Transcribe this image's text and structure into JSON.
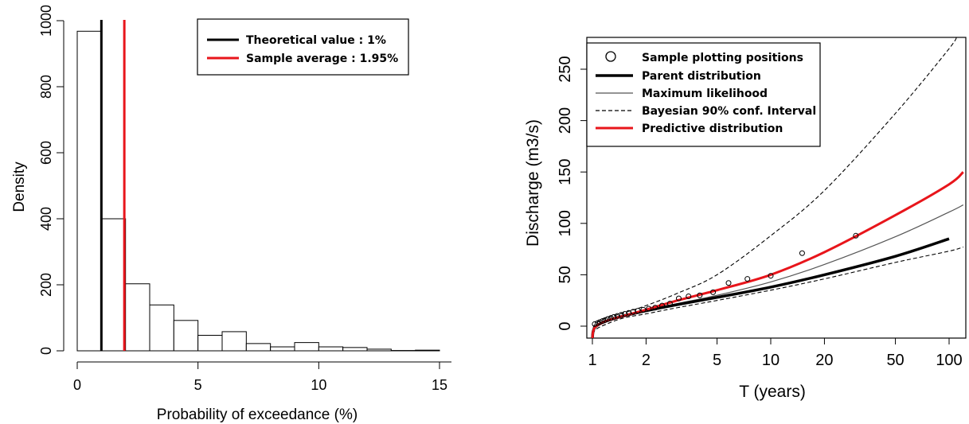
{
  "chart_data": [
    {
      "type": "bar",
      "subtype": "histogram",
      "title": "",
      "xlabel": "Probability of exceedance (%)",
      "ylabel": "Density",
      "xlim": [
        0,
        15
      ],
      "ylim": [
        0,
        1000
      ],
      "x_ticks": [
        0,
        5,
        10,
        15
      ],
      "y_ticks": [
        0,
        200,
        400,
        600,
        800,
        1000
      ],
      "bin_width": 1,
      "bins": [
        {
          "x0": 0,
          "x1": 1,
          "value": 968
        },
        {
          "x0": 1,
          "x1": 2,
          "value": 400
        },
        {
          "x0": 2,
          "x1": 3,
          "value": 203
        },
        {
          "x0": 3,
          "x1": 4,
          "value": 139
        },
        {
          "x0": 4,
          "x1": 5,
          "value": 92
        },
        {
          "x0": 5,
          "x1": 6,
          "value": 47
        },
        {
          "x0": 6,
          "x1": 7,
          "value": 58
        },
        {
          "x0": 7,
          "x1": 8,
          "value": 22
        },
        {
          "x0": 8,
          "x1": 9,
          "value": 12
        },
        {
          "x0": 9,
          "x1": 10,
          "value": 25
        },
        {
          "x0": 10,
          "x1": 11,
          "value": 12
        },
        {
          "x0": 11,
          "x1": 12,
          "value": 10
        },
        {
          "x0": 12,
          "x1": 13,
          "value": 5
        },
        {
          "x0": 13,
          "x1": 14,
          "value": 1
        },
        {
          "x0": 14,
          "x1": 15,
          "value": 2
        }
      ],
      "vlines": [
        {
          "name": "Theoretical value : 1%",
          "x": 1,
          "color": "#000000"
        },
        {
          "name": "Sample average : 1.95%",
          "x": 1.95,
          "color": "#e8151b"
        }
      ],
      "legend": {
        "position": "top-right",
        "entries": [
          "Theoretical value : 1%",
          "Sample average : 1.95%"
        ]
      }
    },
    {
      "type": "line",
      "title": "",
      "xlabel": "T (years)",
      "ylabel": "Discharge (m3/s)",
      "x_scale": "log",
      "xlim": [
        1,
        120
      ],
      "ylim": [
        -10,
        280
      ],
      "x_ticks": [
        1,
        2,
        5,
        10,
        20,
        50,
        100
      ],
      "y_ticks": [
        0,
        50,
        100,
        150,
        200,
        250
      ],
      "series": [
        {
          "name": "Sample plotting positions",
          "style": "points",
          "color": "#000000",
          "x": [
            1.03,
            1.07,
            1.1,
            1.14,
            1.18,
            1.22,
            1.27,
            1.32,
            1.38,
            1.45,
            1.52,
            1.6,
            1.69,
            1.8,
            1.93,
            2.07,
            2.25,
            2.46,
            2.72,
            3.05,
            3.46,
            4.0,
            4.75,
            5.8,
            7.4,
            10.0,
            15.0,
            30.0
          ],
          "y": [
            2,
            3,
            4,
            5,
            6,
            7,
            8,
            9,
            10,
            11,
            12,
            13,
            14,
            15,
            16,
            17,
            18,
            20,
            22,
            27,
            29,
            30,
            33,
            42,
            46,
            49,
            71,
            88
          ]
        },
        {
          "name": "Parent distribution",
          "style": "thick",
          "color": "#000000",
          "x": [
            1.001,
            1.01,
            1.05,
            1.2,
            1.5,
            2,
            3,
            5,
            10,
            20,
            50,
            100
          ],
          "y": [
            -12,
            -5,
            0,
            5,
            10,
            15,
            21,
            28,
            38,
            50,
            68,
            85
          ]
        },
        {
          "name": "Maximum likelihood",
          "style": "thin",
          "color": "#555555",
          "x": [
            1.001,
            1.01,
            1.05,
            1.2,
            1.5,
            2,
            3,
            5,
            10,
            20,
            50,
            100,
            120
          ],
          "y": [
            -12,
            -5,
            0,
            5,
            10,
            15,
            22,
            30,
            43,
            60,
            87,
            111,
            118
          ]
        },
        {
          "name": "Bayesian 90% conf. Interval",
          "style": "dashed-upper",
          "color": "#000000",
          "x": [
            1.001,
            1.01,
            1.05,
            1.2,
            1.5,
            2,
            3,
            5,
            10,
            20,
            50,
            100,
            110
          ],
          "y": [
            -8,
            -2,
            3,
            8,
            13,
            20,
            32,
            50,
            88,
            132,
            207,
            270,
            282
          ]
        },
        {
          "name": "Bayesian 90% conf. Interval",
          "style": "dashed-lower",
          "color": "#000000",
          "x": [
            1.001,
            1.01,
            1.05,
            1.2,
            1.5,
            2,
            3,
            5,
            10,
            20,
            50,
            100,
            120
          ],
          "y": [
            -14,
            -8,
            -3,
            2,
            8,
            12,
            18,
            25,
            35,
            46,
            62,
            73,
            77
          ]
        },
        {
          "name": "Predictive distribution",
          "style": "red-thick",
          "color": "#e8151b",
          "x": [
            1.001,
            1.01,
            1.05,
            1.2,
            1.5,
            2,
            3,
            5,
            10,
            20,
            50,
            100,
            120
          ],
          "y": [
            -12,
            -5,
            0,
            5,
            10,
            16,
            25,
            35,
            50,
            72,
            108,
            138,
            150
          ]
        }
      ],
      "legend": {
        "position": "top-left",
        "entries": [
          "Sample plotting positions",
          "Parent distribution",
          "Maximum likelihood",
          "Bayesian 90% conf. Interval",
          "Predictive distribution"
        ]
      }
    }
  ]
}
